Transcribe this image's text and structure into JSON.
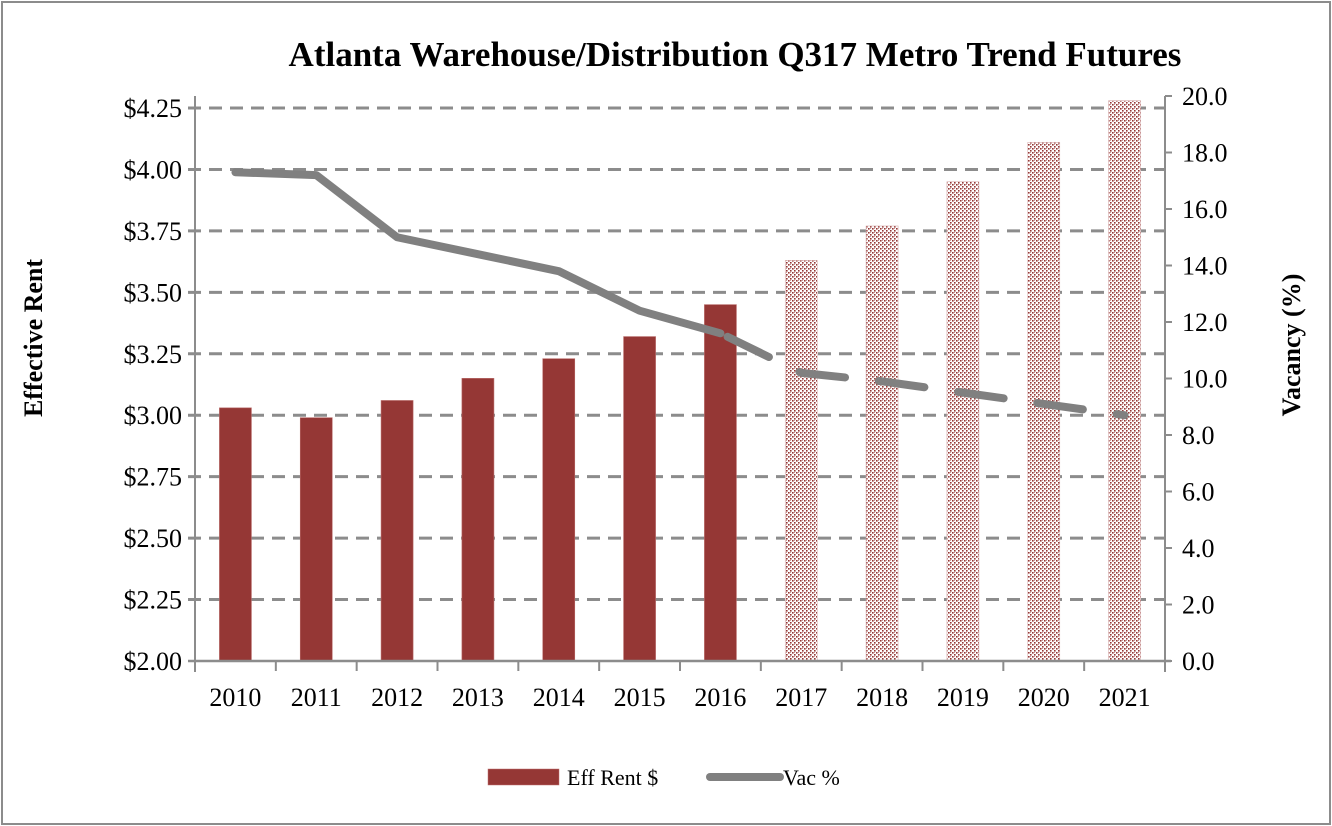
{
  "chart_data": {
    "type": "bar",
    "title": "Atlanta Warehouse/Distribution Q317 Metro Trend Futures",
    "xlabel": "",
    "ylabel": "Effective Rent",
    "y2label": "Vacancy (%)",
    "categories": [
      "2010",
      "2011",
      "2012",
      "2013",
      "2014",
      "2015",
      "2016",
      "2017",
      "2018",
      "2019",
      "2020",
      "2021"
    ],
    "ylim": [
      2.0,
      4.25
    ],
    "y2lim": [
      0.0,
      20.0
    ],
    "y_ticks": [
      "$2.00",
      "$2.25",
      "$2.50",
      "$2.75",
      "$3.00",
      "$3.25",
      "$3.50",
      "$3.75",
      "$4.00",
      "$4.25"
    ],
    "y_tick_values": [
      2.0,
      2.25,
      2.5,
      2.75,
      3.0,
      3.25,
      3.5,
      3.75,
      4.0,
      4.25
    ],
    "y2_ticks": [
      "0.0",
      "2.0",
      "4.0",
      "6.0",
      "8.0",
      "10.0",
      "12.0",
      "14.0",
      "16.0",
      "18.0",
      "20.0"
    ],
    "y2_tick_values": [
      0,
      2,
      4,
      6,
      8,
      10,
      12,
      14,
      16,
      18,
      20
    ],
    "grid": true,
    "grid_style": "dashed",
    "forecast_start_index": 7,
    "series": [
      {
        "name": "Eff Rent $",
        "type": "bar",
        "axis": "left",
        "color": "#953735",
        "values": [
          3.03,
          2.99,
          3.06,
          3.15,
          3.23,
          3.32,
          3.45,
          3.63,
          3.77,
          3.95,
          4.11,
          4.28
        ],
        "forecast_style": "dotted-pattern"
      },
      {
        "name": "Vac %",
        "type": "line",
        "axis": "right",
        "color": "#808080",
        "values": [
          17.3,
          17.2,
          15.0,
          14.4,
          13.8,
          12.4,
          11.6,
          10.2,
          9.9,
          9.5,
          9.1,
          8.7
        ],
        "forecast_style": "dashed"
      }
    ],
    "legend": {
      "position": "bottom",
      "entries": [
        "Eff Rent $",
        "Vac %"
      ]
    }
  }
}
